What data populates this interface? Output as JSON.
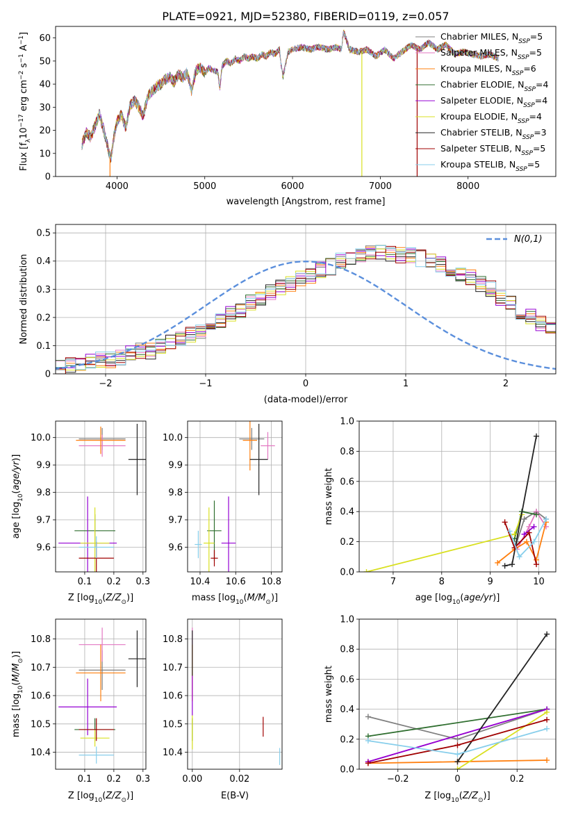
{
  "figure_title": "PLATE=0921, MJD=52380, FIBERID=0119, z=0.057",
  "models": [
    {
      "name": "Chabrier MILES",
      "nssp": "5",
      "color": "#7f7f7f"
    },
    {
      "name": "Salpeter MILES",
      "nssp": "5",
      "color": "#e377c2"
    },
    {
      "name": "Kroupa MILES",
      "nssp": "6",
      "color": "#ff7f0e"
    },
    {
      "name": "Chabrier ELODIE",
      "nssp": "4",
      "color": "#2f6e2f"
    },
    {
      "name": "Salpeter ELODIE",
      "nssp": "4",
      "color": "#9400d3"
    },
    {
      "name": "Kroupa ELODIE",
      "nssp": "4",
      "color": "#d9e021"
    },
    {
      "name": "Chabrier STELIB",
      "nssp": "3",
      "color": "#222222"
    },
    {
      "name": "Salpeter STELIB",
      "nssp": "5",
      "color": "#a00000"
    },
    {
      "name": "Kroupa STELIB",
      "nssp": "5",
      "color": "#87ceeb"
    }
  ],
  "chart_data": [
    {
      "id": "spectrum",
      "type": "line",
      "xlabel": "wavelength [Angstrom, rest frame]",
      "ylabel": "Flux [f_λ10^-17 erg cm^-2 s^-1 A^-1]",
      "xlim": [
        3300,
        9000
      ],
      "ylim": [
        0,
        65
      ],
      "xticks": [
        4000,
        5000,
        6000,
        7000,
        8000
      ],
      "yticks": [
        0,
        10,
        20,
        30,
        40,
        50,
        60
      ],
      "legend_position": "top-right",
      "grid": false,
      "spectrum_points": [
        [
          3600,
          14
        ],
        [
          3650,
          19
        ],
        [
          3700,
          17
        ],
        [
          3750,
          22
        ],
        [
          3800,
          27
        ],
        [
          3850,
          20
        ],
        [
          3900,
          12
        ],
        [
          3930,
          7
        ],
        [
          3960,
          16
        ],
        [
          4000,
          24
        ],
        [
          4050,
          27
        ],
        [
          4100,
          21
        ],
        [
          4150,
          31
        ],
        [
          4200,
          33
        ],
        [
          4250,
          30
        ],
        [
          4300,
          26
        ],
        [
          4350,
          35
        ],
        [
          4400,
          37
        ],
        [
          4450,
          39
        ],
        [
          4500,
          40
        ],
        [
          4550,
          42
        ],
        [
          4600,
          43
        ],
        [
          4650,
          41
        ],
        [
          4700,
          44
        ],
        [
          4750,
          43
        ],
        [
          4800,
          45
        ],
        [
          4850,
          37
        ],
        [
          4900,
          46
        ],
        [
          4950,
          47
        ],
        [
          5000,
          45
        ],
        [
          5050,
          47
        ],
        [
          5100,
          46
        ],
        [
          5150,
          45
        ],
        [
          5170,
          38
        ],
        [
          5200,
          48
        ],
        [
          5250,
          50
        ],
        [
          5300,
          49
        ],
        [
          5350,
          51
        ],
        [
          5400,
          50
        ],
        [
          5450,
          52
        ],
        [
          5500,
          51
        ],
        [
          5550,
          52
        ],
        [
          5600,
          51
        ],
        [
          5650,
          53
        ],
        [
          5700,
          52
        ],
        [
          5750,
          54
        ],
        [
          5800,
          53
        ],
        [
          5850,
          55
        ],
        [
          5890,
          43
        ],
        [
          5950,
          54
        ],
        [
          6000,
          55
        ],
        [
          6100,
          56
        ],
        [
          6200,
          55
        ],
        [
          6300,
          56
        ],
        [
          6400,
          55
        ],
        [
          6500,
          56
        ],
        [
          6560,
          55
        ],
        [
          6580,
          63
        ],
        [
          6650,
          55
        ],
        [
          6750,
          54
        ],
        [
          6850,
          55
        ],
        [
          6950,
          52
        ],
        [
          7050,
          55
        ],
        [
          7150,
          51
        ],
        [
          7250,
          54
        ],
        [
          7350,
          57
        ],
        [
          7450,
          55
        ],
        [
          7550,
          58
        ],
        [
          7650,
          55
        ],
        [
          7750,
          57
        ],
        [
          7850,
          53
        ],
        [
          7950,
          54
        ],
        [
          8050,
          53
        ],
        [
          8150,
          52
        ],
        [
          8250,
          53
        ],
        [
          8350,
          51
        ]
      ],
      "model_drops": [
        {
          "x": 3920,
          "model": "Kroupa MILES"
        },
        {
          "x": 6790,
          "model": "Kroupa ELODIE"
        },
        {
          "x": 7420,
          "model": "Salpeter STELIB"
        }
      ]
    },
    {
      "id": "residuals",
      "type": "histogram",
      "xlabel": "(data-model)/error",
      "ylabel": "Normed distribution",
      "xlim": [
        -2.5,
        2.5
      ],
      "ylim": [
        0,
        0.53
      ],
      "xticks": [
        -2,
        -1,
        0,
        1,
        2
      ],
      "yticks": [
        0.0,
        0.1,
        0.2,
        0.3,
        0.4,
        0.5
      ],
      "grid": true,
      "legend": "N(0,1)",
      "legend_position": "top-right",
      "bin_width": 0.1,
      "hist_values": [
        0.02,
        0.03,
        0.03,
        0.04,
        0.05,
        0.05,
        0.06,
        0.07,
        0.08,
        0.08,
        0.1,
        0.11,
        0.12,
        0.14,
        0.15,
        0.17,
        0.19,
        0.21,
        0.23,
        0.25,
        0.27,
        0.29,
        0.31,
        0.32,
        0.34,
        0.35,
        0.37,
        0.38,
        0.4,
        0.41,
        0.42,
        0.43,
        0.43,
        0.43,
        0.42,
        0.42,
        0.41,
        0.4,
        0.39,
        0.37,
        0.35,
        0.34,
        0.32,
        0.3,
        0.27,
        0.25,
        0.22,
        0.2,
        0.18,
        0.16,
        0.15,
        0.13,
        0.12,
        0.11,
        0.1,
        0.09,
        0.08,
        0.07,
        0.06,
        0.05
      ]
    },
    {
      "id": "age_vs_Z",
      "type": "scatter",
      "xlabel": "Z [log10(Z/Z⊙)]",
      "ylabel": "age [log10(age/yr)]",
      "xlim": [
        0.0,
        0.31
      ],
      "ylim": [
        9.51,
        10.06
      ],
      "xticks": [
        0.1,
        0.2,
        0.3
      ],
      "yticks": [
        9.6,
        9.7,
        9.8,
        9.9,
        10.0
      ],
      "grid": true,
      "points": [
        {
          "model": "Chabrier MILES",
          "x": 0.16,
          "y": 9.995,
          "xerr": 0.08,
          "yerr": 0.04
        },
        {
          "model": "Salpeter MILES",
          "x": 0.16,
          "y": 9.97,
          "xerr": 0.08,
          "yerr": 0.04
        },
        {
          "model": "Kroupa MILES",
          "x": 0.155,
          "y": 9.99,
          "xerr": 0.085,
          "yerr": 0.05
        },
        {
          "model": "Chabrier ELODIE",
          "x": 0.135,
          "y": 9.66,
          "xerr": 0.07,
          "yerr": 0.06
        },
        {
          "model": "Salpeter ELODIE",
          "x": 0.11,
          "y": 9.615,
          "xerr": 0.1,
          "yerr": 0.17
        },
        {
          "model": "Kroupa ELODIE",
          "x": 0.135,
          "y": 9.615,
          "xerr": 0.05,
          "yerr": 0.13
        },
        {
          "model": "Chabrier STELIB",
          "x": 0.28,
          "y": 9.92,
          "xerr": 0.03,
          "yerr": 0.13
        },
        {
          "model": "Salpeter STELIB",
          "x": 0.14,
          "y": 9.56,
          "xerr": 0.06,
          "yerr": 0.06
        },
        {
          "model": "Kroupa STELIB",
          "x": 0.14,
          "y": 9.6,
          "xerr": 0.06,
          "yerr": 0.04
        }
      ]
    },
    {
      "id": "age_vs_mass",
      "type": "scatter",
      "xlabel": "mass [log10(M/M⊙)]",
      "ylabel": "",
      "xlim": [
        10.33,
        10.86
      ],
      "ylim": [
        9.51,
        10.06
      ],
      "xticks": [
        10.4,
        10.6,
        10.8
      ],
      "yticks": [
        9.6,
        9.7,
        9.8,
        9.9,
        10.0
      ],
      "grid": true,
      "points": [
        {
          "model": "Chabrier MILES",
          "x": 10.69,
          "y": 9.995,
          "xerr": 0.07,
          "yerr": 0.04
        },
        {
          "model": "Salpeter MILES",
          "x": 10.78,
          "y": 9.97,
          "xerr": 0.04,
          "yerr": 0.05
        },
        {
          "model": "Kroupa MILES",
          "x": 10.68,
          "y": 9.99,
          "xerr": 0.04,
          "yerr": 0.11
        },
        {
          "model": "Chabrier ELODIE",
          "x": 10.48,
          "y": 9.66,
          "xerr": 0.04,
          "yerr": 0.11
        },
        {
          "model": "Salpeter ELODIE",
          "x": 10.56,
          "y": 9.615,
          "xerr": 0.04,
          "yerr": 0.17
        },
        {
          "model": "Kroupa ELODIE",
          "x": 10.45,
          "y": 9.615,
          "xerr": 0.03,
          "yerr": 0.13
        },
        {
          "model": "Chabrier STELIB",
          "x": 10.73,
          "y": 9.92,
          "xerr": 0.05,
          "yerr": 0.13
        },
        {
          "model": "Salpeter STELIB",
          "x": 10.48,
          "y": 9.56,
          "xerr": 0.02,
          "yerr": 0.03
        },
        {
          "model": "Kroupa STELIB",
          "x": 10.39,
          "y": 9.61,
          "xerr": 0.02,
          "yerr": 0.05
        }
      ]
    },
    {
      "id": "weight_vs_age",
      "type": "line",
      "xlabel": "age [log10(age/yr)]",
      "ylabel": "mass weight",
      "xlim": [
        6.3,
        10.35
      ],
      "ylim": [
        0,
        1.0
      ],
      "xticks": [
        7,
        8,
        9,
        10
      ],
      "yticks": [
        0.0,
        0.2,
        0.4,
        0.6,
        0.8,
        1.0
      ],
      "grid": true,
      "series": [
        {
          "model": "Chabrier MILES",
          "x": [
            9.55,
            9.7,
            9.95,
            10.15
          ],
          "y": [
            0.2,
            0.35,
            0.4,
            0.35
          ]
        },
        {
          "model": "Salpeter MILES",
          "x": [
            9.55,
            9.8,
            9.95,
            10.15
          ],
          "y": [
            0.15,
            0.3,
            0.4,
            0.3
          ]
        },
        {
          "model": "Kroupa MILES",
          "x": [
            9.15,
            9.5,
            9.75,
            9.95,
            10.15
          ],
          "y": [
            0.06,
            0.15,
            0.2,
            0.08,
            0.33
          ]
        },
        {
          "model": "Chabrier ELODIE",
          "x": [
            9.5,
            9.65,
            9.95
          ],
          "y": [
            0.22,
            0.4,
            0.38
          ]
        },
        {
          "model": "Salpeter ELODIE",
          "x": [
            9.7,
            9.9
          ],
          "y": [
            0.25,
            0.3
          ]
        },
        {
          "model": "Kroupa ELODIE",
          "x": [
            6.45,
            9.5,
            9.65
          ],
          "y": [
            0.0,
            0.25,
            0.38
          ]
        },
        {
          "model": "Chabrier STELIB",
          "x": [
            9.3,
            9.45,
            9.95
          ],
          "y": [
            0.04,
            0.05,
            0.9
          ]
        },
        {
          "model": "Salpeter STELIB",
          "x": [
            9.3,
            9.5,
            9.8,
            9.95
          ],
          "y": [
            0.33,
            0.16,
            0.26,
            0.05
          ]
        },
        {
          "model": "Kroupa STELIB",
          "x": [
            9.4,
            9.6,
            9.9,
            10.15
          ],
          "y": [
            0.27,
            0.1,
            0.2,
            0.35
          ]
        }
      ]
    },
    {
      "id": "mass_vs_Z",
      "type": "scatter",
      "xlabel": "Z [log10(Z/Z⊙)]",
      "ylabel": "mass [log10(M/M⊙)]",
      "xlim": [
        0.0,
        0.31
      ],
      "ylim": [
        10.34,
        10.87
      ],
      "xticks": [
        0.1,
        0.2,
        0.3
      ],
      "yticks": [
        10.4,
        10.5,
        10.6,
        10.7,
        10.8
      ],
      "grid": true,
      "points": [
        {
          "model": "Chabrier MILES",
          "x": 0.16,
          "y": 10.69,
          "xerr": 0.08,
          "yerr": 0.07
        },
        {
          "model": "Salpeter MILES",
          "x": 0.16,
          "y": 10.78,
          "xerr": 0.08,
          "yerr": 0.06
        },
        {
          "model": "Kroupa MILES",
          "x": 0.155,
          "y": 10.68,
          "xerr": 0.085,
          "yerr": 0.1
        },
        {
          "model": "Chabrier ELODIE",
          "x": 0.135,
          "y": 10.48,
          "xerr": 0.07,
          "yerr": 0.04
        },
        {
          "model": "Salpeter ELODIE",
          "x": 0.11,
          "y": 10.56,
          "xerr": 0.1,
          "yerr": 0.1
        },
        {
          "model": "Kroupa ELODIE",
          "x": 0.135,
          "y": 10.45,
          "xerr": 0.05,
          "yerr": 0.03
        },
        {
          "model": "Chabrier STELIB",
          "x": 0.28,
          "y": 10.73,
          "xerr": 0.03,
          "yerr": 0.1
        },
        {
          "model": "Salpeter STELIB",
          "x": 0.14,
          "y": 10.48,
          "xerr": 0.06,
          "yerr": 0.04
        },
        {
          "model": "Kroupa STELIB",
          "x": 0.14,
          "y": 10.39,
          "xerr": 0.06,
          "yerr": 0.03
        }
      ]
    },
    {
      "id": "mass_vs_ebv",
      "type": "scatter",
      "xlabel": "E(B-V)",
      "ylabel": "",
      "xlim": [
        -0.002,
        0.038
      ],
      "ylim": [
        10.34,
        10.87
      ],
      "xticks": [
        0.0,
        0.02
      ],
      "yticks": [
        10.4,
        10.5,
        10.6,
        10.7,
        10.8
      ],
      "grid": true,
      "points": [
        {
          "model": "Chabrier MILES",
          "x": 0.0,
          "y": 10.69,
          "xerr": 0,
          "yerr": 0.07
        },
        {
          "model": "Salpeter MILES",
          "x": 0.0,
          "y": 10.78,
          "xerr": 0,
          "yerr": 0.06
        },
        {
          "model": "Kroupa MILES",
          "x": 0.0,
          "y": 10.68,
          "xerr": 0,
          "yerr": 0.1
        },
        {
          "model": "Chabrier ELODIE",
          "x": 0.0,
          "y": 10.48,
          "xerr": 0,
          "yerr": 0.04
        },
        {
          "model": "Salpeter ELODIE",
          "x": 0.0,
          "y": 10.6,
          "xerr": 0,
          "yerr": 0.07
        },
        {
          "model": "Kroupa ELODIE",
          "x": 0.0,
          "y": 10.47,
          "xerr": 0,
          "yerr": 0.06
        },
        {
          "model": "Chabrier STELIB",
          "x": 0.0,
          "y": 10.75,
          "xerr": 0,
          "yerr": 0.08
        },
        {
          "model": "Salpeter STELIB",
          "x": 0.03,
          "y": 10.49,
          "xerr": 0,
          "yerr": 0.035
        },
        {
          "model": "Kroupa STELIB",
          "x": 0.037,
          "y": 10.385,
          "xerr": 0,
          "yerr": 0.03
        }
      ]
    },
    {
      "id": "weight_vs_Z",
      "type": "line",
      "xlabel": "Z [log10(Z/Z⊙)]",
      "ylabel": "mass weight",
      "xlim": [
        -0.33,
        0.33
      ],
      "ylim": [
        0,
        1.0
      ],
      "xticks": [
        -0.2,
        0.0,
        0.2
      ],
      "yticks": [
        0.0,
        0.2,
        0.4,
        0.6,
        0.8,
        1.0
      ],
      "grid": true,
      "series": [
        {
          "model": "Chabrier MILES",
          "x": [
            -0.3,
            0.0,
            0.3
          ],
          "y": [
            0.35,
            0.2,
            0.4
          ]
        },
        {
          "model": "Salpeter MILES",
          "x": [
            -0.3,
            0.3
          ],
          "y": [
            0.05,
            0.4
          ]
        },
        {
          "model": "Kroupa MILES",
          "x": [
            -0.3,
            0.0,
            0.3
          ],
          "y": [
            0.04,
            0.05,
            0.06
          ]
        },
        {
          "model": "Chabrier ELODIE",
          "x": [
            -0.3,
            0.3
          ],
          "y": [
            0.22,
            0.4
          ]
        },
        {
          "model": "Salpeter ELODIE",
          "x": [
            -0.3,
            0.3
          ],
          "y": [
            0.05,
            0.4
          ]
        },
        {
          "model": "Kroupa ELODIE",
          "x": [
            0.0,
            0.3
          ],
          "y": [
            0.0,
            0.38
          ]
        },
        {
          "model": "Chabrier STELIB",
          "x": [
            0.0,
            0.3
          ],
          "y": [
            0.05,
            0.9
          ]
        },
        {
          "model": "Salpeter STELIB",
          "x": [
            -0.3,
            0.0,
            0.3
          ],
          "y": [
            0.04,
            0.16,
            0.33
          ]
        },
        {
          "model": "Kroupa STELIB",
          "x": [
            -0.3,
            0.0,
            0.3
          ],
          "y": [
            0.19,
            0.1,
            0.27
          ]
        }
      ]
    }
  ]
}
